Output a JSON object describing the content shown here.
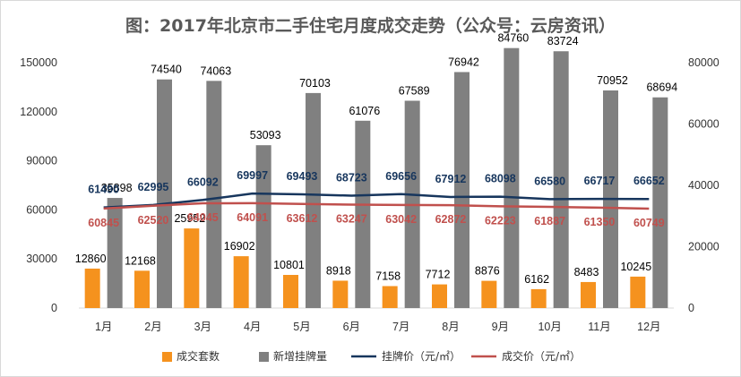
{
  "title": "图：2017年北京市二手住宅月度成交走势（公众号：云房资讯）",
  "chart_data": {
    "type": "bar+line",
    "categories": [
      "1月",
      "2月",
      "3月",
      "4月",
      "5月",
      "6月",
      "7月",
      "8月",
      "9月",
      "10月",
      "11月",
      "12月"
    ],
    "series": [
      {
        "name": "成交套数",
        "kind": "bar",
        "axis": "right",
        "color": "#f5921e",
        "values": [
          12860,
          12168,
          25952,
          16902,
          10801,
          8918,
          7158,
          7712,
          8876,
          6162,
          8483,
          10245
        ]
      },
      {
        "name": "新增挂牌量",
        "kind": "bar",
        "axis": "right",
        "color": "#808080",
        "values": [
          35898,
          74540,
          74063,
          53093,
          70103,
          61076,
          67589,
          76942,
          84760,
          83724,
          70952,
          68694
        ]
      },
      {
        "name": "挂牌价（元/㎡）",
        "kind": "line",
        "axis": "left",
        "color": "#17365d",
        "values": [
          61490,
          62995,
          66092,
          69997,
          69493,
          68723,
          69656,
          67912,
          68098,
          66580,
          66717,
          66652
        ]
      },
      {
        "name": "成交价（元/㎡）",
        "kind": "line",
        "axis": "left",
        "color": "#c0504d",
        "values": [
          60845,
          62520,
          64045,
          64091,
          63612,
          63247,
          63042,
          62872,
          62223,
          61887,
          61350,
          60749
        ]
      }
    ],
    "left_axis": {
      "min": 0,
      "max": 150000,
      "ticks": [
        0,
        30000,
        60000,
        90000,
        120000,
        150000
      ]
    },
    "right_axis": {
      "min": 0,
      "max": 80000,
      "ticks": [
        0,
        20000,
        40000,
        60000,
        80000
      ]
    },
    "legend_position": "bottom"
  }
}
